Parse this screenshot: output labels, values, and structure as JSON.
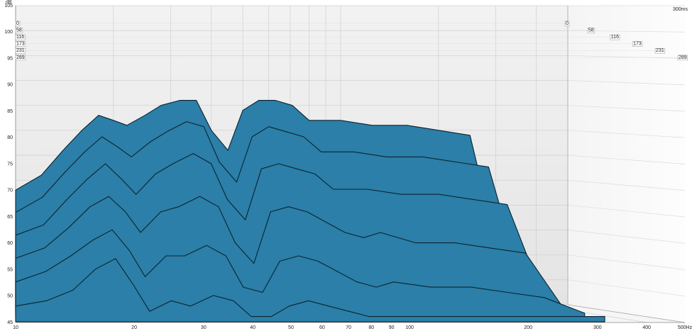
{
  "chart_data": {
    "type": "waterfall",
    "y_label": "dB",
    "depth_label": "300ms",
    "x": [
      10,
      12,
      14,
      16,
      18,
      20,
      22,
      25,
      28,
      32,
      36,
      40,
      45,
      50,
      56,
      63,
      71,
      80,
      90,
      100,
      125,
      160,
      200,
      250,
      320
    ],
    "xlim": [
      10,
      500
    ],
    "xticks": [
      10,
      20,
      30,
      40,
      50,
      60,
      70,
      80,
      90,
      100,
      200,
      300,
      400,
      {
        "value": 500,
        "label": "500Hz"
      }
    ],
    "log_x": true,
    "ylim": [
      45,
      105
    ],
    "yticks": [
      45,
      50,
      55,
      60,
      65,
      70,
      75,
      80,
      85,
      90,
      95,
      100,
      105
    ],
    "zlim": [
      0,
      300
    ],
    "zticks": [
      0,
      58,
      116,
      173,
      231,
      289
    ],
    "grid": true,
    "color": "#2b7fa8",
    "series": [
      {
        "time": 0,
        "values": [
          68,
          71,
          76,
          80,
          83,
          82,
          81,
          83,
          85,
          86,
          86,
          80,
          76,
          84,
          86,
          86,
          85,
          82,
          82,
          82,
          81,
          81,
          80,
          79,
          50
        ]
      },
      {
        "time": 58,
        "values": [
          64,
          67,
          72,
          76,
          79,
          77,
          75,
          78,
          80,
          82,
          81,
          74,
          70,
          79,
          81,
          80,
          79,
          76,
          76,
          76,
          75,
          75,
          74,
          73,
          48
        ]
      },
      {
        "time": 116,
        "values": [
          60,
          62,
          67,
          71,
          74,
          71,
          68,
          72,
          74,
          76,
          74,
          67,
          63,
          73,
          74,
          73,
          72,
          69,
          69,
          69,
          68,
          68,
          67,
          66,
          47
        ]
      },
      {
        "time": 173,
        "values": [
          56,
          58,
          62,
          66,
          68,
          65,
          61,
          65,
          66,
          68,
          66,
          59,
          55,
          65,
          66,
          65,
          63,
          61,
          60,
          61,
          59,
          59,
          58,
          57,
          46
        ]
      },
      {
        "time": 231,
        "values": [
          52,
          54,
          57,
          60,
          62,
          58,
          53,
          57,
          57,
          59,
          57,
          51,
          50,
          56,
          57,
          56,
          54,
          52,
          51,
          52,
          51,
          51,
          50,
          49,
          46
        ]
      },
      {
        "time": 289,
        "values": [
          48,
          49,
          51,
          55,
          57,
          52,
          47,
          49,
          48,
          50,
          49,
          46,
          46,
          48,
          49,
          48,
          47,
          46,
          46,
          46,
          46,
          46,
          46,
          46,
          46
        ]
      }
    ]
  }
}
